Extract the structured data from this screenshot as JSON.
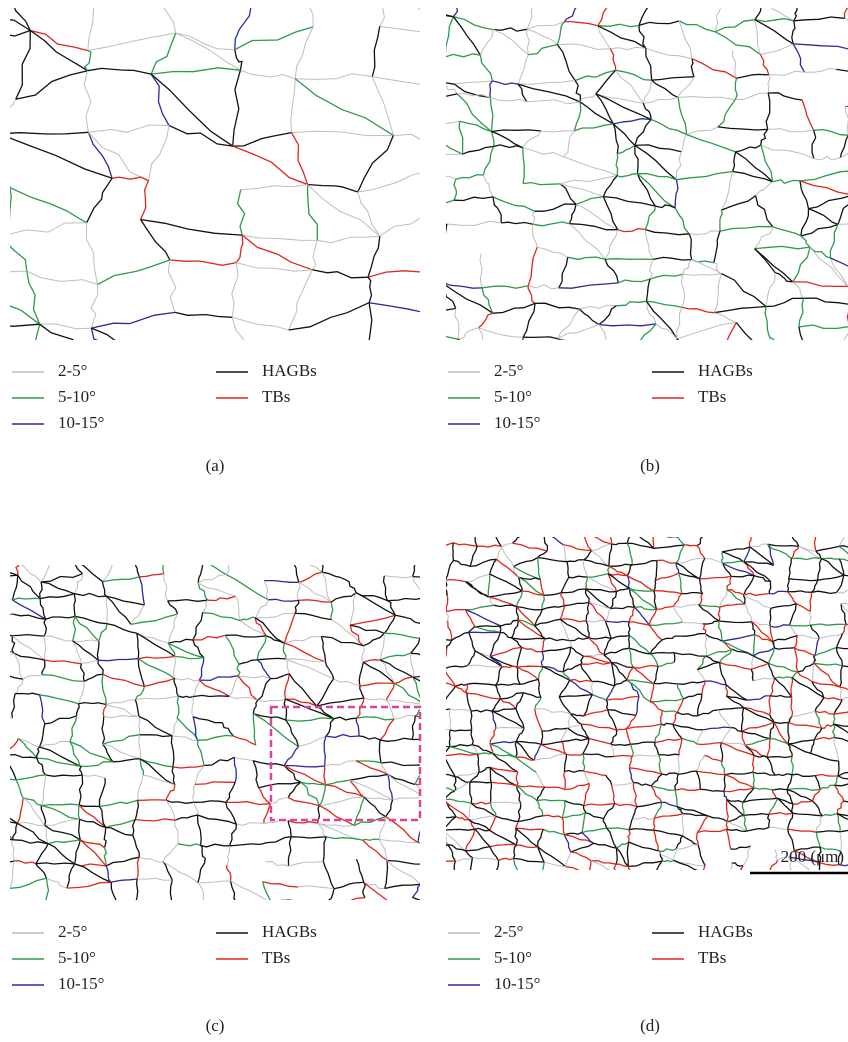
{
  "panels": [
    {
      "label": "(a)",
      "legend": [
        "2-5°",
        "5-10°",
        "10-15°",
        "HAGBs",
        "TBs"
      ]
    },
    {
      "label": "(b)",
      "legend": [
        "2-5°",
        "5-10°",
        "10-15°",
        "HAGBs",
        "TBs"
      ]
    },
    {
      "label": "(c)",
      "legend": [
        "2-5°",
        "5-10°",
        "10-15°",
        "HAGBs",
        "TBs"
      ]
    },
    {
      "label": "(d)",
      "legend": [
        "2-5°",
        "5-10°",
        "10-15°",
        "HAGBs",
        "TBs"
      ]
    }
  ],
  "scale_bar": "200 (μm)"
}
